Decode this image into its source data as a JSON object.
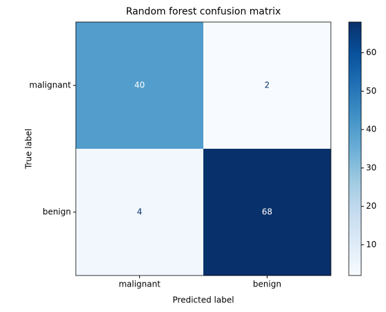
{
  "chart_data": {
    "type": "heatmap",
    "title": "Random forest confusion matrix",
    "x_label": "Predicted label",
    "y_label": "True label",
    "x_categories": [
      "malignant",
      "benign"
    ],
    "y_categories": [
      "malignant",
      "benign"
    ],
    "values": [
      [
        40,
        2
      ],
      [
        4,
        68
      ]
    ],
    "colorscale": [
      "#f7fbff",
      "#deebf7",
      "#c6dbef",
      "#9ecae1",
      "#6baed6",
      "#4292c6",
      "#2171b5",
      "#08519c",
      "#08306b"
    ],
    "zlim": [
      2,
      68
    ],
    "zticks": [
      10,
      20,
      30,
      40,
      50,
      60
    ]
  }
}
